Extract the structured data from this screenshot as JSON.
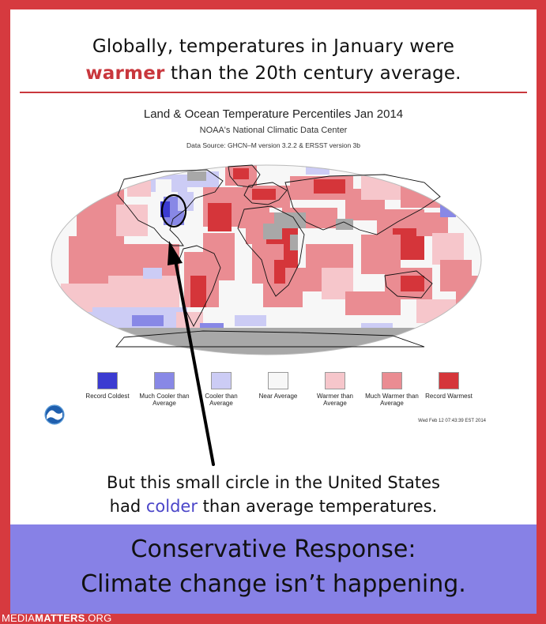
{
  "headline": {
    "line1": "Globally, temperatures in January were",
    "line2_highlight": "warmer",
    "line2_rest": " than the 20th century average.",
    "highlight_color": "#c9373d"
  },
  "figure": {
    "title": "Land & Ocean Temperature Percentiles Jan 2014",
    "subtitle": "NOAA's National Climatic Data Center",
    "source": "Data Source: GHCN–M version 3.2.2 & ERSST version 3b",
    "timestamp": "Wed Feb 12 07:43:39 EST 2014",
    "logo": "noaa-logo",
    "legend": [
      {
        "label": "Record Coldest",
        "color": "#3b3bd1"
      },
      {
        "label": "Much Cooler than Average",
        "color": "#8888e6"
      },
      {
        "label": "Cooler than Average",
        "color": "#ccccf5"
      },
      {
        "label": "Near Average",
        "color": "#f7f7f7"
      },
      {
        "label": "Warmer than Average",
        "color": "#f6c6cb"
      },
      {
        "label": "Much Warmer than Average",
        "color": "#ea8c92"
      },
      {
        "label": "Record Warmest",
        "color": "#d5353a"
      }
    ],
    "no_data_color": "#a8a8a8",
    "annotation": "circle around the United States with an arrow"
  },
  "callout": {
    "line1": "But this small circle in the United States",
    "line2_prefix": "had ",
    "line2_highlight": "colder",
    "line2_rest": " than average temperatures.",
    "highlight_color": "#4b46c9"
  },
  "response": {
    "line1": "Conservative Response:",
    "line2": "Climate change isn’t happening.",
    "background": "#8781e6"
  },
  "footer": {
    "brand_light": "MEDIA",
    "brand_bold": "MATTERS",
    "brand_suffix": ".ORG"
  }
}
